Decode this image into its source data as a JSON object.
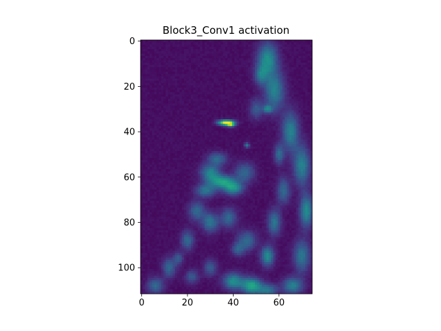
{
  "chart_data": {
    "type": "heatmap",
    "title": "Block3_Conv1 activation",
    "xlabel": "",
    "ylabel": "",
    "colormap": "viridis",
    "image_shape": [
      112,
      75
    ],
    "xlim": [
      -0.5,
      74.5
    ],
    "ylim": [
      111.5,
      -0.5
    ],
    "xticks": [
      0,
      20,
      40,
      60
    ],
    "yticks": [
      0,
      20,
      40,
      60,
      80,
      100
    ],
    "value_range": [
      0,
      1
    ],
    "background_value": 0.02,
    "blobs": [
      {
        "x": 37,
        "y": 36,
        "sx": 2.4,
        "sy": 0.8,
        "v": 1.0
      },
      {
        "x": 39,
        "y": 37,
        "sx": 1.2,
        "sy": 0.6,
        "v": 0.55
      },
      {
        "x": 46,
        "y": 46,
        "sx": 0.8,
        "sy": 0.8,
        "v": 0.35
      },
      {
        "x": 55,
        "y": 8,
        "sx": 3,
        "sy": 5,
        "v": 0.45
      },
      {
        "x": 58,
        "y": 22,
        "sx": 3,
        "sy": 6,
        "v": 0.4
      },
      {
        "x": 52,
        "y": 15,
        "sx": 2,
        "sy": 3,
        "v": 0.3
      },
      {
        "x": 50,
        "y": 30,
        "sx": 2,
        "sy": 3,
        "v": 0.25
      },
      {
        "x": 55,
        "y": 30,
        "sx": 1.5,
        "sy": 1.2,
        "v": 0.35
      },
      {
        "x": 65,
        "y": 40,
        "sx": 2.5,
        "sy": 6,
        "v": 0.4
      },
      {
        "x": 70,
        "y": 55,
        "sx": 2.5,
        "sy": 6,
        "v": 0.4
      },
      {
        "x": 72,
        "y": 75,
        "sx": 2,
        "sy": 5,
        "v": 0.45
      },
      {
        "x": 70,
        "y": 95,
        "sx": 2.5,
        "sy": 5,
        "v": 0.35
      },
      {
        "x": 35,
        "y": 62,
        "sx": 4,
        "sy": 2,
        "v": 0.5
      },
      {
        "x": 30,
        "y": 58,
        "sx": 3,
        "sy": 2.5,
        "v": 0.4
      },
      {
        "x": 40,
        "y": 65,
        "sx": 3,
        "sy": 2,
        "v": 0.45
      },
      {
        "x": 28,
        "y": 66,
        "sx": 3,
        "sy": 2,
        "v": 0.35
      },
      {
        "x": 33,
        "y": 52,
        "sx": 3,
        "sy": 2,
        "v": 0.3
      },
      {
        "x": 45,
        "y": 58,
        "sx": 3,
        "sy": 3,
        "v": 0.3
      },
      {
        "x": 24,
        "y": 75,
        "sx": 2.5,
        "sy": 3,
        "v": 0.3
      },
      {
        "x": 30,
        "y": 80,
        "sx": 2.5,
        "sy": 3,
        "v": 0.35
      },
      {
        "x": 38,
        "y": 78,
        "sx": 2.5,
        "sy": 3,
        "v": 0.3
      },
      {
        "x": 20,
        "y": 88,
        "sx": 2,
        "sy": 3,
        "v": 0.3
      },
      {
        "x": 46,
        "y": 88,
        "sx": 3,
        "sy": 3,
        "v": 0.3
      },
      {
        "x": 55,
        "y": 95,
        "sx": 2,
        "sy": 3,
        "v": 0.45
      },
      {
        "x": 58,
        "y": 80,
        "sx": 2,
        "sy": 4,
        "v": 0.35
      },
      {
        "x": 62,
        "y": 66,
        "sx": 2,
        "sy": 4,
        "v": 0.3
      },
      {
        "x": 42,
        "y": 92,
        "sx": 2,
        "sy": 2,
        "v": 0.25
      },
      {
        "x": 40,
        "y": 106,
        "sx": 3,
        "sy": 2.5,
        "v": 0.45
      },
      {
        "x": 48,
        "y": 108,
        "sx": 3,
        "sy": 2.5,
        "v": 0.55
      },
      {
        "x": 55,
        "y": 110,
        "sx": 3,
        "sy": 2,
        "v": 0.35
      },
      {
        "x": 66,
        "y": 108,
        "sx": 3,
        "sy": 2.5,
        "v": 0.4
      },
      {
        "x": 12,
        "y": 100,
        "sx": 2,
        "sy": 3,
        "v": 0.3
      },
      {
        "x": 6,
        "y": 108,
        "sx": 2.5,
        "sy": 2.5,
        "v": 0.3
      },
      {
        "x": 16,
        "y": 96,
        "sx": 1.5,
        "sy": 2,
        "v": 0.25
      },
      {
        "x": 22,
        "y": 104,
        "sx": 2,
        "sy": 2,
        "v": 0.25
      },
      {
        "x": 30,
        "y": 100,
        "sx": 2,
        "sy": 2.5,
        "v": 0.25
      },
      {
        "x": 60,
        "y": 50,
        "sx": 1.5,
        "sy": 3,
        "v": 0.3
      }
    ]
  }
}
